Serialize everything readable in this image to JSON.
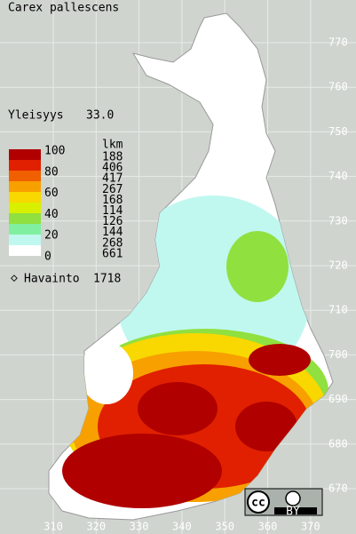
{
  "title": "Carex pallescens",
  "frequency": {
    "label": "Yleisyys",
    "value": "33.0"
  },
  "legend": {
    "scale_labels": [
      100,
      80,
      60,
      40,
      20,
      0
    ],
    "colors": [
      "#b00000",
      "#e02000",
      "#f06000",
      "#f8a000",
      "#f8d800",
      "#d8f000",
      "#90e040",
      "#80f0a0",
      "#c0f8f0",
      "#ffffff"
    ],
    "count_header": "lkm",
    "counts": [
      188,
      406,
      417,
      267,
      168,
      114,
      126,
      144,
      268,
      661
    ],
    "observations": {
      "label": "Havainto",
      "value": 1718
    }
  },
  "grid": {
    "northing_labels": [
      770,
      760,
      750,
      740,
      730,
      720,
      710,
      700,
      690,
      680,
      670
    ],
    "easting_labels": [
      310,
      320,
      330,
      340,
      350,
      360,
      370
    ]
  },
  "license": "BY"
}
